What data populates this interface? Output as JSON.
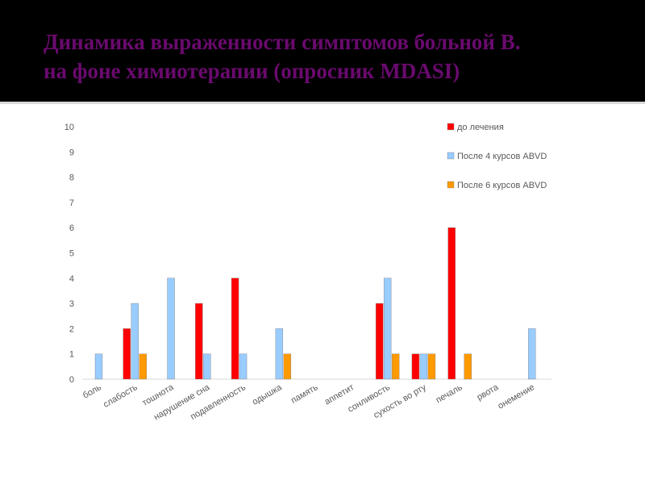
{
  "slide": {
    "title_line1": "Динамика выраженности симптомов больной В.",
    "title_line2": "на фоне химиотерапии (опросник MDASI)"
  },
  "colors": {
    "background": "#000000",
    "title": "#6a0a6e",
    "series": [
      "#ff0000",
      "#99ccff",
      "#ff9900"
    ]
  },
  "chart_data": {
    "type": "bar",
    "categories": [
      "боль",
      "слабость",
      "тошнота",
      "нарушение сна",
      "подавленность",
      "одышка",
      "память",
      "аппетит",
      "сонливость",
      "сухость во рту",
      "печаль",
      "рвота",
      "онемение"
    ],
    "series": [
      {
        "name": "до лечения",
        "values": [
          0,
          2,
          0,
          3,
          4,
          0,
          0,
          0,
          3,
          1,
          6,
          0,
          0
        ]
      },
      {
        "name": "После 4 курсов ABVD",
        "values": [
          1,
          3,
          4,
          1,
          1,
          2,
          0,
          0,
          4,
          1,
          0,
          0,
          2
        ]
      },
      {
        "name": "После 6 курсов ABVD",
        "values": [
          0,
          1,
          0,
          0,
          0,
          1,
          0,
          0,
          1,
          1,
          1,
          0,
          0
        ]
      }
    ],
    "y_ticks": [
      "0",
      "1",
      "2",
      "3",
      "4",
      "5",
      "6",
      "7",
      "8",
      "9",
      "10"
    ],
    "ylim": [
      0,
      10
    ],
    "grid": false,
    "legend_position": "top-right"
  }
}
